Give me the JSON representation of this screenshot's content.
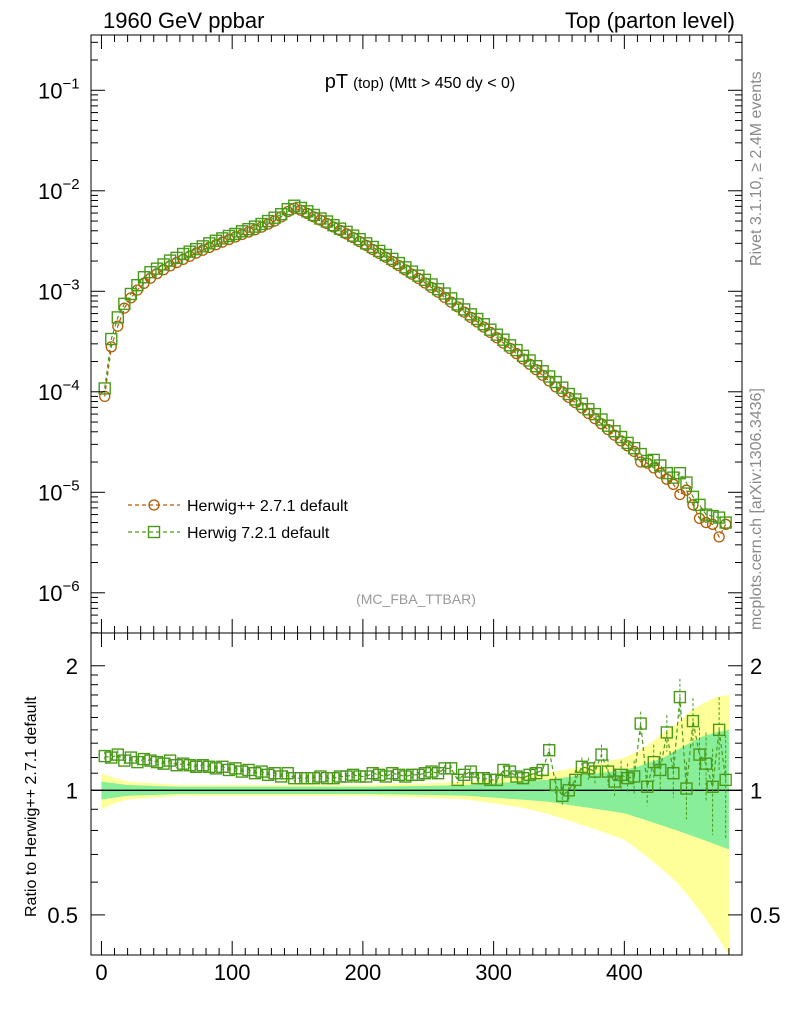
{
  "header": {
    "left": "1960 GeV ppbar",
    "right": "Top (parton level)"
  },
  "side_labels": {
    "rivet": "Rivet 3.1.10, ≥ 2.4M events",
    "mcplots": "mcplots.cern.ch [arXiv:1306.3436]"
  },
  "colors": {
    "herwigpp": "#b35900",
    "herwig7": "#4a9a1a",
    "band_inner": "#88ee99",
    "band_outer": "#ffff99"
  },
  "chart_data": [
    {
      "type": "line",
      "title": "pT",
      "title_sub": "(top)",
      "title_cut": "(Mtt > 450 dy < 0)",
      "watermark": "(MC_FBA_TTBAR)",
      "yscale": "log",
      "xlim": [
        -8,
        490
      ],
      "ylim_exp": [
        -6.4,
        -0.45
      ],
      "ytick_exponents": [
        -6,
        -5,
        -4,
        -3,
        -2,
        -1
      ],
      "ytick_labels": [
        "10",
        "10",
        "10",
        "10",
        "10",
        "10"
      ],
      "ytick_sup": [
        "−6",
        "−5",
        "−4",
        "−3",
        "−2",
        "−1"
      ],
      "legend": {
        "position": "bottom-left",
        "entries": [
          "Herwig++ 2.7.1 default",
          "Herwig 7.2.1 default"
        ]
      },
      "series": [
        {
          "name": "Herwig++ 2.7.1 default",
          "marker": "circle",
          "x": [
            2.5,
            7.5,
            12.5,
            17.5,
            22.5,
            27.5,
            32.5,
            37.5,
            42.5,
            47.5,
            52.5,
            57.5,
            62.5,
            67.5,
            72.5,
            77.5,
            82.5,
            87.5,
            92.5,
            97.5,
            102.5,
            107.5,
            112.5,
            117.5,
            122.5,
            127.5,
            132.5,
            137.5,
            142.5,
            147.5,
            152.5,
            157.5,
            162.5,
            167.5,
            172.5,
            177.5,
            182.5,
            187.5,
            192.5,
            197.5,
            202.5,
            207.5,
            212.5,
            217.5,
            222.5,
            227.5,
            232.5,
            237.5,
            242.5,
            247.5,
            252.5,
            257.5,
            262.5,
            267.5,
            272.5,
            277.5,
            282.5,
            287.5,
            292.5,
            297.5,
            302.5,
            307.5,
            312.5,
            317.5,
            322.5,
            327.5,
            332.5,
            337.5,
            342.5,
            347.5,
            352.5,
            357.5,
            362.5,
            367.5,
            372.5,
            377.5,
            382.5,
            387.5,
            392.5,
            397.5,
            402.5,
            407.5,
            412.5,
            417.5,
            422.5,
            427.5,
            432.5,
            437.5,
            442.5,
            447.5,
            452.5,
            457.5,
            462.5,
            467.5,
            472.5,
            477.5
          ],
          "y": [
            9e-05,
            0.00028,
            0.00045,
            0.00068,
            0.00086,
            0.00103,
            0.0012,
            0.00135,
            0.0015,
            0.00164,
            0.00179,
            0.00193,
            0.00208,
            0.00223,
            0.0024,
            0.00256,
            0.00273,
            0.0029,
            0.00308,
            0.00327,
            0.00347,
            0.00367,
            0.00388,
            0.0041,
            0.00435,
            0.00466,
            0.005,
            0.0055,
            0.0062,
            0.0067,
            0.0064,
            0.00595,
            0.0055,
            0.0051,
            0.00472,
            0.00436,
            0.00403,
            0.00372,
            0.00342,
            0.00312,
            0.00286,
            0.0026,
            0.00238,
            0.00218,
            0.00198,
            0.0018,
            0.00163,
            0.00148,
            0.00134,
            0.00121,
            0.00109,
            0.00098,
            0.00087,
            0.00078,
            0.0007,
            0.00062,
            0.00055,
            0.000495,
            0.00044,
            0.00039,
            0.000345,
            0.000305,
            0.00027,
            0.00024,
            0.000212,
            0.000188,
            0.000166,
            0.000146,
            0.000128,
            0.000112,
            0.0001,
            8.8e-05,
            7.8e-05,
            6.9e-05,
            6.1e-05,
            5.4e-05,
            4.8e-05,
            4.2e-05,
            3.7e-05,
            3.25e-05,
            2.9e-05,
            2.55e-05,
            2e-05,
            1.95e-05,
            1.75e-05,
            1.55e-05,
            1.35e-05,
            1.2e-05,
            9.5e-06,
            1.05e-05,
            7.5e-06,
            5.5e-06,
            5e-06,
            4.8e-06,
            3.6e-06,
            4.8e-06
          ]
        },
        {
          "name": "Herwig 7.2.1 default",
          "marker": "square",
          "x": [
            2.5,
            7.5,
            12.5,
            17.5,
            22.5,
            27.5,
            32.5,
            37.5,
            42.5,
            47.5,
            52.5,
            57.5,
            62.5,
            67.5,
            72.5,
            77.5,
            82.5,
            87.5,
            92.5,
            97.5,
            102.5,
            107.5,
            112.5,
            117.5,
            122.5,
            127.5,
            132.5,
            137.5,
            142.5,
            147.5,
            152.5,
            157.5,
            162.5,
            167.5,
            172.5,
            177.5,
            182.5,
            187.5,
            192.5,
            197.5,
            202.5,
            207.5,
            212.5,
            217.5,
            222.5,
            227.5,
            232.5,
            237.5,
            242.5,
            247.5,
            252.5,
            257.5,
            262.5,
            267.5,
            272.5,
            277.5,
            282.5,
            287.5,
            292.5,
            297.5,
            302.5,
            307.5,
            312.5,
            317.5,
            322.5,
            327.5,
            332.5,
            337.5,
            342.5,
            347.5,
            352.5,
            357.5,
            362.5,
            367.5,
            372.5,
            377.5,
            382.5,
            387.5,
            392.5,
            397.5,
            402.5,
            407.5,
            412.5,
            417.5,
            422.5,
            427.5,
            432.5,
            437.5,
            442.5,
            447.5,
            452.5,
            457.5,
            462.5,
            467.5,
            472.5,
            477.5
          ],
          "y": [
            0.000108,
            0.000335,
            0.00055,
            0.00075,
            0.00094,
            0.00115,
            0.00138,
            0.00155,
            0.00168,
            0.00185,
            0.00202,
            0.00215,
            0.00235,
            0.00248,
            0.00263,
            0.0028,
            0.003,
            0.00318,
            0.00336,
            0.00355,
            0.00372,
            0.00395,
            0.00415,
            0.0044,
            0.00467,
            0.005,
            0.0054,
            0.00585,
            0.00655,
            0.0071,
            0.00675,
            0.00625,
            0.00575,
            0.0053,
            0.00495,
            0.00455,
            0.0042,
            0.0039,
            0.00358,
            0.0033,
            0.003,
            0.00276,
            0.00252,
            0.0023,
            0.0021,
            0.00191,
            0.00173,
            0.00157,
            0.00143,
            0.0013,
            0.00117,
            0.00105,
            0.00095,
            0.00085,
            0.00074,
            0.00066,
            0.00059,
            0.00053,
            0.00047,
            0.000415,
            0.00037,
            0.00033,
            0.00029,
            0.00026,
            0.000228,
            0.000205,
            0.00018,
            0.00016,
            0.000142,
            0.000125,
            0.00011,
            9.5e-05,
            8.4e-05,
            7.6e-05,
            6.7e-05,
            6e-05,
            5.3e-05,
            4.6e-05,
            4.05e-05,
            3.55e-05,
            3.1e-05,
            2.75e-05,
            2.4e-05,
            2.05e-05,
            2.1e-05,
            1.85e-05,
            1.55e-05,
            1.4e-05,
            1.55e-05,
            1.25e-05,
            9e-06,
            7.5e-06,
            6e-06,
            5.8e-06,
            5.6e-06,
            5e-06
          ]
        }
      ]
    },
    {
      "type": "line",
      "ylabel": "Ratio to Herwig++ 2.7.1 default",
      "xlim": [
        -8,
        490
      ],
      "ylim": [
        0.4,
        2.4
      ],
      "yscale": "log",
      "xtick_labels": [
        "0",
        "100",
        "200",
        "300",
        "400"
      ],
      "xtick_values": [
        0,
        100,
        200,
        300,
        400
      ],
      "ytick_labels": [
        "0.5",
        "1",
        "2"
      ],
      "ytick_values": [
        0.5,
        1,
        2
      ],
      "band": {
        "x": [
          0,
          10,
          20,
          40,
          60,
          80,
          100,
          150,
          200,
          250,
          280,
          300,
          320,
          340,
          360,
          380,
          400,
          410,
          420,
          430,
          440,
          450,
          460,
          470,
          480
        ],
        "inner_up": [
          1.05,
          1.04,
          1.03,
          1.025,
          1.02,
          1.02,
          1.02,
          1.02,
          1.02,
          1.025,
          1.03,
          1.04,
          1.05,
          1.06,
          1.08,
          1.1,
          1.12,
          1.14,
          1.17,
          1.2,
          1.25,
          1.3,
          1.35,
          1.38,
          1.4
        ],
        "inner_dn": [
          0.95,
          0.96,
          0.97,
          0.975,
          0.98,
          0.98,
          0.98,
          0.98,
          0.98,
          0.975,
          0.97,
          0.96,
          0.95,
          0.94,
          0.92,
          0.9,
          0.88,
          0.86,
          0.84,
          0.82,
          0.8,
          0.78,
          0.76,
          0.74,
          0.72
        ],
        "outer_up": [
          1.1,
          1.07,
          1.05,
          1.04,
          1.03,
          1.03,
          1.03,
          1.03,
          1.03,
          1.04,
          1.05,
          1.06,
          1.08,
          1.1,
          1.13,
          1.16,
          1.2,
          1.24,
          1.3,
          1.38,
          1.45,
          1.55,
          1.62,
          1.68,
          1.7
        ],
        "outer_dn": [
          0.9,
          0.93,
          0.95,
          0.96,
          0.97,
          0.97,
          0.97,
          0.97,
          0.97,
          0.96,
          0.95,
          0.93,
          0.91,
          0.88,
          0.84,
          0.8,
          0.76,
          0.72,
          0.68,
          0.64,
          0.6,
          0.55,
          0.5,
          0.45,
          0.4
        ]
      },
      "series": [
        {
          "name": "Herwig 7.2.1 default / Herwig++ 2.7.1 default",
          "marker": "square",
          "x": [
            2.5,
            7.5,
            12.5,
            17.5,
            22.5,
            27.5,
            32.5,
            37.5,
            42.5,
            47.5,
            52.5,
            57.5,
            62.5,
            67.5,
            72.5,
            77.5,
            82.5,
            87.5,
            92.5,
            97.5,
            102.5,
            107.5,
            112.5,
            117.5,
            122.5,
            127.5,
            132.5,
            137.5,
            142.5,
            147.5,
            152.5,
            157.5,
            162.5,
            167.5,
            172.5,
            177.5,
            182.5,
            187.5,
            192.5,
            197.5,
            202.5,
            207.5,
            212.5,
            217.5,
            222.5,
            227.5,
            232.5,
            237.5,
            242.5,
            247.5,
            252.5,
            257.5,
            262.5,
            267.5,
            272.5,
            277.5,
            282.5,
            287.5,
            292.5,
            297.5,
            302.5,
            307.5,
            312.5,
            317.5,
            322.5,
            327.5,
            332.5,
            337.5,
            342.5,
            347.5,
            352.5,
            357.5,
            362.5,
            367.5,
            372.5,
            377.5,
            382.5,
            387.5,
            392.5,
            397.5,
            402.5,
            407.5,
            412.5,
            417.5,
            422.5,
            427.5,
            432.5,
            437.5,
            442.5,
            447.5,
            452.5,
            457.5,
            462.5,
            467.5,
            472.5,
            477.5
          ],
          "y": [
            1.21,
            1.2,
            1.22,
            1.18,
            1.2,
            1.17,
            1.19,
            1.18,
            1.17,
            1.16,
            1.18,
            1.15,
            1.16,
            1.15,
            1.14,
            1.15,
            1.14,
            1.13,
            1.14,
            1.12,
            1.13,
            1.11,
            1.12,
            1.1,
            1.11,
            1.09,
            1.1,
            1.08,
            1.1,
            1.07,
            1.07,
            1.07,
            1.07,
            1.08,
            1.07,
            1.07,
            1.08,
            1.08,
            1.09,
            1.08,
            1.08,
            1.1,
            1.09,
            1.08,
            1.1,
            1.09,
            1.08,
            1.09,
            1.09,
            1.1,
            1.11,
            1.1,
            1.13,
            1.13,
            1.06,
            1.09,
            1.11,
            1.07,
            1.07,
            1.06,
            1.06,
            1.12,
            1.11,
            1.08,
            1.07,
            1.09,
            1.1,
            1.12,
            1.25,
            1.03,
            0.97,
            1.0,
            1.06,
            1.14,
            1.13,
            1.11,
            1.22,
            1.11,
            1.05,
            1.09,
            1.07,
            1.08,
            1.45,
            1.02,
            1.17,
            1.12,
            1.38,
            1.1,
            1.68,
            1.01,
            1.47,
            1.22,
            1.16,
            1.02,
            1.4,
            1.06
          ],
          "err": [
            0.03,
            0.03,
            0.03,
            0.03,
            0.03,
            0.03,
            0.02,
            0.02,
            0.02,
            0.02,
            0.02,
            0.02,
            0.02,
            0.02,
            0.02,
            0.02,
            0.02,
            0.02,
            0.02,
            0.02,
            0.02,
            0.02,
            0.02,
            0.02,
            0.02,
            0.02,
            0.02,
            0.02,
            0.02,
            0.02,
            0.02,
            0.02,
            0.02,
            0.02,
            0.02,
            0.02,
            0.02,
            0.02,
            0.02,
            0.02,
            0.02,
            0.02,
            0.02,
            0.02,
            0.02,
            0.02,
            0.02,
            0.02,
            0.02,
            0.02,
            0.02,
            0.02,
            0.02,
            0.02,
            0.02,
            0.02,
            0.03,
            0.03,
            0.03,
            0.03,
            0.03,
            0.03,
            0.03,
            0.03,
            0.04,
            0.04,
            0.04,
            0.04,
            0.05,
            0.05,
            0.05,
            0.05,
            0.06,
            0.06,
            0.07,
            0.07,
            0.07,
            0.08,
            0.08,
            0.09,
            0.09,
            0.1,
            0.1,
            0.1,
            0.12,
            0.12,
            0.14,
            0.14,
            0.18,
            0.16,
            0.2,
            0.2,
            0.22,
            0.24,
            0.28,
            0.3
          ]
        }
      ]
    }
  ]
}
